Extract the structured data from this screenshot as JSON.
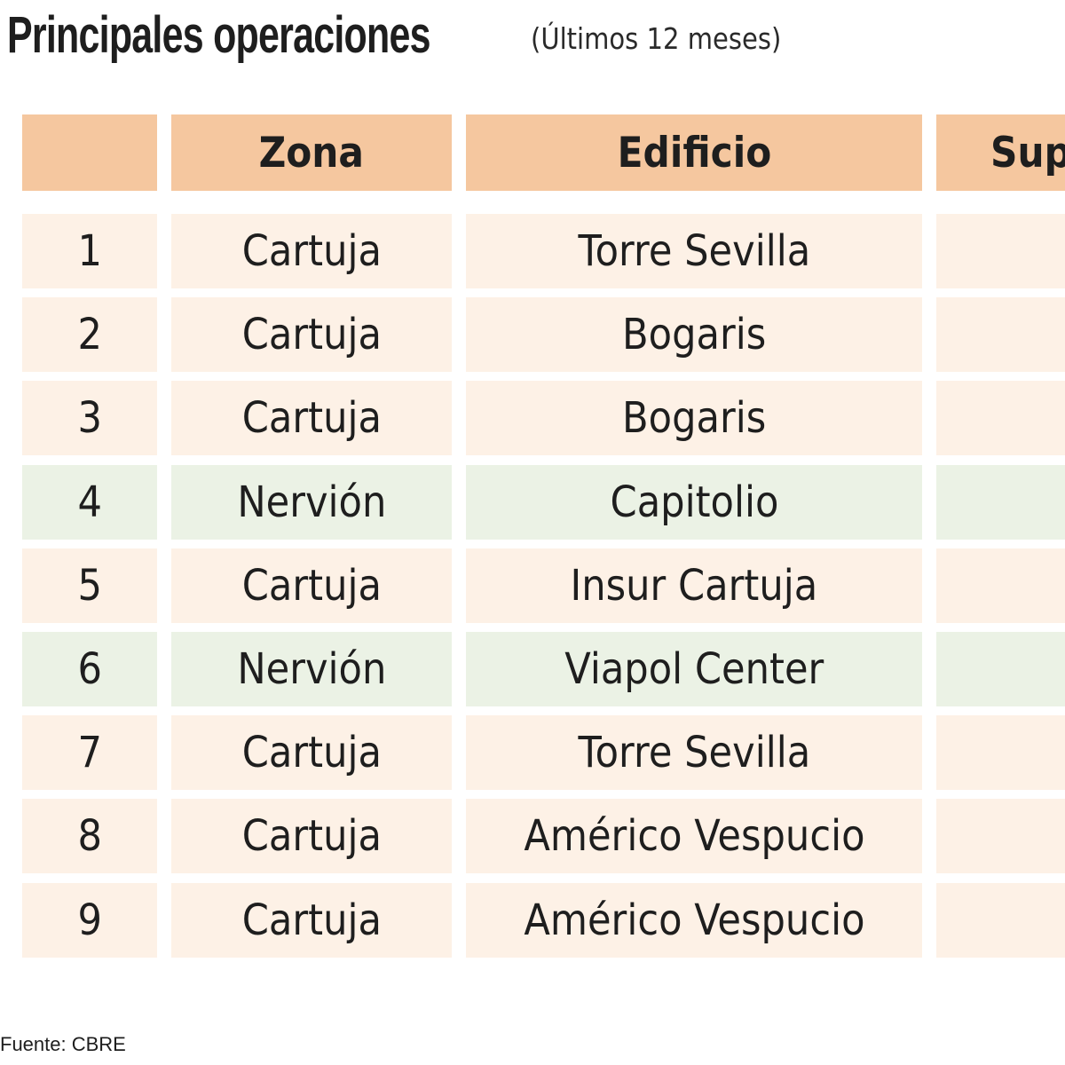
{
  "title": "Principales operaciones",
  "subtitle": "(Últimos 12 meses)",
  "table": {
    "headers": [
      "",
      "Zona",
      "Edificio",
      "Sup"
    ],
    "rows": [
      {
        "n": "1",
        "zona": "Cartuja",
        "edificio": "Torre Sevilla",
        "highlight": "cartuja"
      },
      {
        "n": "2",
        "zona": "Cartuja",
        "edificio": "Bogaris",
        "highlight": "cartuja"
      },
      {
        "n": "3",
        "zona": "Cartuja",
        "edificio": "Bogaris",
        "highlight": "cartuja"
      },
      {
        "n": "4",
        "zona": "Nervión",
        "edificio": "Capitolio",
        "highlight": "nervion"
      },
      {
        "n": "5",
        "zona": "Cartuja",
        "edificio": "Insur Cartuja",
        "highlight": "cartuja"
      },
      {
        "n": "6",
        "zona": "Nervión",
        "edificio": "Viapol Center",
        "highlight": "nervion"
      },
      {
        "n": "7",
        "zona": "Cartuja",
        "edificio": "Torre Sevilla",
        "highlight": "cartuja"
      },
      {
        "n": "8",
        "zona": "Cartuja",
        "edificio": "Américo Vespucio",
        "highlight": "cartuja"
      },
      {
        "n": "9",
        "zona": "Cartuja",
        "edificio": "Américo Vespucio",
        "highlight": "cartuja"
      }
    ]
  },
  "colors": {
    "header": "#f5c79f",
    "cartuja_row": "#fdf1e6",
    "nervion_row": "#ebf2e5",
    "text": "#1e1e1e"
  },
  "source": "Fuente: CBRE"
}
